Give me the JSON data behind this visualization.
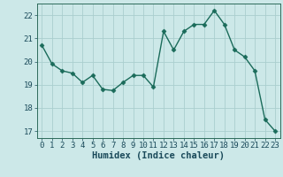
{
  "x": [
    0,
    1,
    2,
    3,
    4,
    5,
    6,
    7,
    8,
    9,
    10,
    11,
    12,
    13,
    14,
    15,
    16,
    17,
    18,
    19,
    20,
    21,
    22,
    23
  ],
  "y": [
    20.7,
    19.9,
    19.6,
    19.5,
    19.1,
    19.4,
    18.8,
    18.75,
    19.1,
    19.4,
    19.4,
    18.9,
    21.3,
    20.5,
    21.3,
    21.6,
    21.6,
    22.2,
    21.6,
    20.5,
    20.2,
    19.6,
    17.5,
    17.0
  ],
  "line_color": "#1a6b5a",
  "marker": "D",
  "marker_size": 2.5,
  "bg_color": "#cce8e8",
  "grid_color": "#aacece",
  "axis_color": "#2d6b5a",
  "xlabel": "Humidex (Indice chaleur)",
  "ylim": [
    16.7,
    22.5
  ],
  "xlim": [
    -0.5,
    23.5
  ],
  "yticks": [
    17,
    18,
    19,
    20,
    21,
    22
  ],
  "xticks": [
    0,
    1,
    2,
    3,
    4,
    5,
    6,
    7,
    8,
    9,
    10,
    11,
    12,
    13,
    14,
    15,
    16,
    17,
    18,
    19,
    20,
    21,
    22,
    23
  ],
  "font_color": "#1a4a5a",
  "tick_fontsize": 6.5,
  "xlabel_fontsize": 7.5
}
